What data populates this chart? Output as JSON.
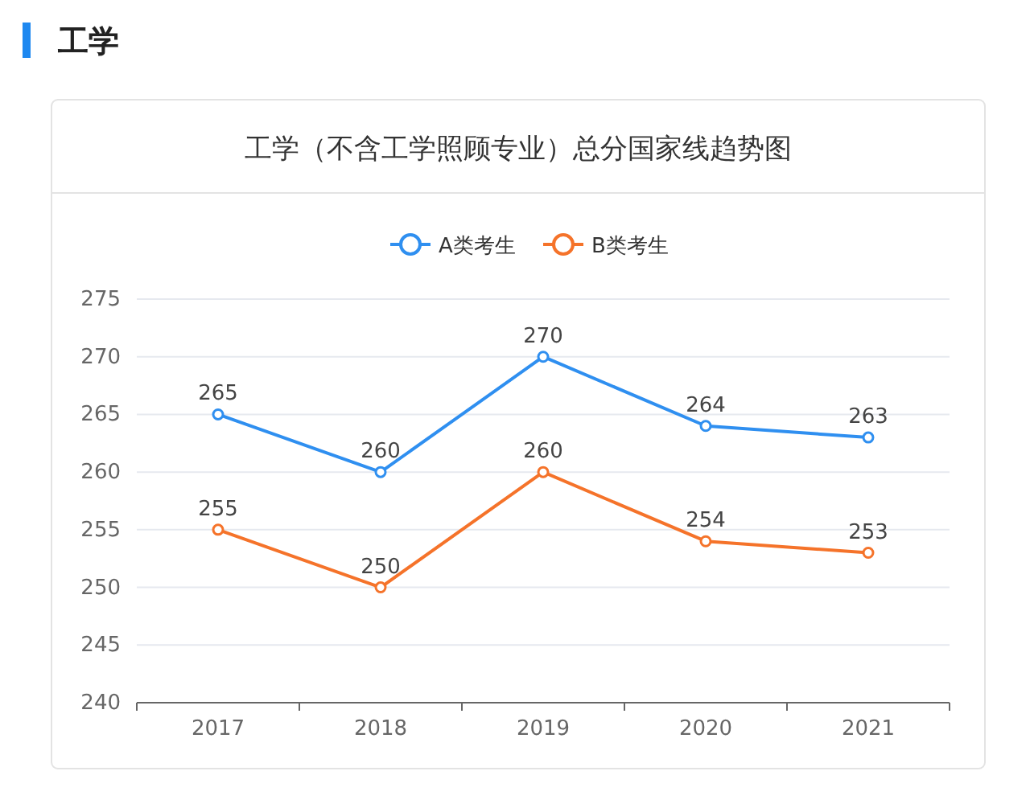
{
  "chart_data": {
    "type": "line",
    "subtitle": "工学",
    "title": "工学（不含工学照顾专业）总分国家线趋势图",
    "categories": [
      "2017",
      "2018",
      "2019",
      "2020",
      "2021"
    ],
    "series": [
      {
        "name": "A类考生",
        "color": "#2f8ff0",
        "values": [
          265,
          260,
          270,
          264,
          263
        ]
      },
      {
        "name": "B类考生",
        "color": "#f5732a",
        "values": [
          255,
          250,
          260,
          254,
          253
        ]
      }
    ],
    "ylim": [
      240,
      275
    ],
    "yticks": [
      240,
      245,
      250,
      255,
      260,
      265,
      270,
      275
    ],
    "grid": "y",
    "legend": "top",
    "marker": "circle",
    "line_style": "solid",
    "data_labels": true
  }
}
